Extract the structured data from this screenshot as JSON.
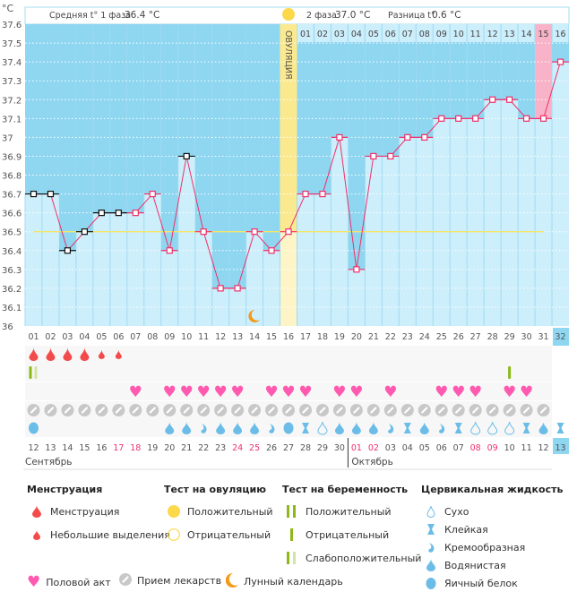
{
  "header": {
    "phase1_label": "Средняя t° 1 фаза",
    "phase1_value": "36.4 °C",
    "phase2_label": "2 фаза",
    "phase2_value": "37.0 °C",
    "diff_label": "Разница t°",
    "diff_value": "0.6 °C",
    "ovulation_label": "ОВУЛЯЦИЯ",
    "unit": "°C"
  },
  "colors": {
    "phase_dark": "#8fd6f0",
    "bar_light": "#cdeefb",
    "line": "#f0306a",
    "coverline": "#f5e66a",
    "ovulation": "#fbe98f",
    "pink_day": "#f9b3c8",
    "menses": "#f34b4b",
    "heart": "#ff5ab0",
    "pill": "#c8c8c8",
    "fluid": "#6bbde8",
    "test_green": "#8db816",
    "test_pale": "#d3e4a4",
    "moon": "#f39a1a"
  },
  "chart_data": {
    "type": "line",
    "ylim": [
      36.0,
      37.6
    ],
    "yticks": [
      "37.6",
      "37.5",
      "37.4",
      "37.3",
      "37.2",
      "37.1",
      "37",
      "36.9",
      "36.8",
      "36.7",
      "36.6",
      "36.5",
      "36.4",
      "36.3",
      "36.2",
      "36.1",
      "36"
    ],
    "cycle_days": [
      "01",
      "02",
      "03",
      "04",
      "05",
      "06",
      "07",
      "08",
      "09",
      "10",
      "11",
      "12",
      "13",
      "14",
      "15",
      "16",
      "17",
      "18",
      "19",
      "20",
      "21",
      "22",
      "23",
      "24",
      "25",
      "26",
      "27",
      "28",
      "29",
      "30",
      "31",
      "32"
    ],
    "temperatures": [
      36.7,
      36.7,
      36.4,
      36.5,
      36.6,
      36.6,
      36.6,
      36.7,
      36.4,
      36.9,
      36.5,
      36.2,
      36.2,
      36.5,
      36.4,
      36.5,
      36.7,
      36.7,
      37.0,
      36.3,
      36.9,
      36.9,
      37.0,
      37.0,
      37.1,
      37.1,
      37.1,
      37.2,
      37.2,
      37.1,
      37.1,
      37.4
    ],
    "excluded_points_days": [
      1,
      2,
      3,
      4,
      5,
      6,
      10
    ],
    "coverline": 36.5,
    "ovulation_day": 16,
    "phase2_day_labels": [
      "01",
      "02",
      "03",
      "04",
      "05",
      "06",
      "07",
      "08",
      "09",
      "10",
      "11",
      "12",
      "13",
      "14",
      "15",
      "16"
    ],
    "highlighted_phase2_day": 15,
    "current_day": 32,
    "dates": [
      "12",
      "13",
      "14",
      "15",
      "16",
      "17",
      "18",
      "19",
      "20",
      "21",
      "22",
      "23",
      "24",
      "25",
      "26",
      "27",
      "28",
      "29",
      "30",
      "01",
      "02",
      "03",
      "04",
      "05",
      "06",
      "07",
      "08",
      "09",
      "10",
      "11",
      "12",
      "13"
    ],
    "weekend_dates_idx": [
      5,
      6,
      12,
      13,
      19,
      20,
      26,
      27
    ],
    "months": [
      "Сентябрь",
      "Октябрь"
    ],
    "menstruation": {
      "1": "heavy",
      "2": "heavy",
      "3": "heavy",
      "4": "heavy",
      "5": "light",
      "6": "light"
    },
    "pregnancy_test": {
      "1": "weak",
      "29": "negative"
    },
    "intercourse_days": [
      7,
      9,
      10,
      11,
      12,
      13,
      15,
      16,
      17,
      19,
      20,
      22,
      25,
      26,
      27,
      29,
      30
    ],
    "medication_days": [
      1,
      2,
      3,
      4,
      5,
      6,
      7,
      8,
      9,
      10,
      11,
      12,
      13,
      14,
      15,
      16,
      17,
      18,
      19,
      20,
      21,
      22,
      23,
      24,
      25,
      26,
      27,
      28,
      29,
      30,
      31
    ],
    "cervical_fluid": {
      "1": "egg",
      "9": "watery",
      "10": "watery",
      "11": "creamy",
      "12": "watery",
      "13": "watery",
      "14": "watery",
      "15": "creamy",
      "16": "egg",
      "17": "sticky",
      "18": "dry",
      "19": "watery",
      "20": "watery",
      "21": "watery",
      "22": "creamy",
      "23": "sticky",
      "24": "watery",
      "25": "creamy",
      "26": "sticky",
      "27": "dry",
      "28": "dry",
      "29": "dry",
      "30": "sticky",
      "31": "watery",
      "32": "sticky"
    },
    "moon_day": 14
  },
  "legend": {
    "menstruation": {
      "title": "Менструация",
      "items": [
        "Менструация",
        "Небольшие выделения"
      ]
    },
    "ovulation_test": {
      "title": "Тест на овуляцию",
      "items": [
        "Положительный",
        "Отрицательный"
      ]
    },
    "pregnancy_test": {
      "title": "Тест на беременность",
      "items": [
        "Положительный",
        "Отрицательный",
        "Слабоположительный"
      ]
    },
    "cervical": {
      "title": "Цервикальная жидкость",
      "items": [
        "Сухо",
        "Клейкая",
        "Кремообразная",
        "Водянистая",
        "Яичный белок"
      ]
    },
    "other": [
      "Половой акт",
      "Прием лекарств",
      "Лунный календарь"
    ]
  }
}
